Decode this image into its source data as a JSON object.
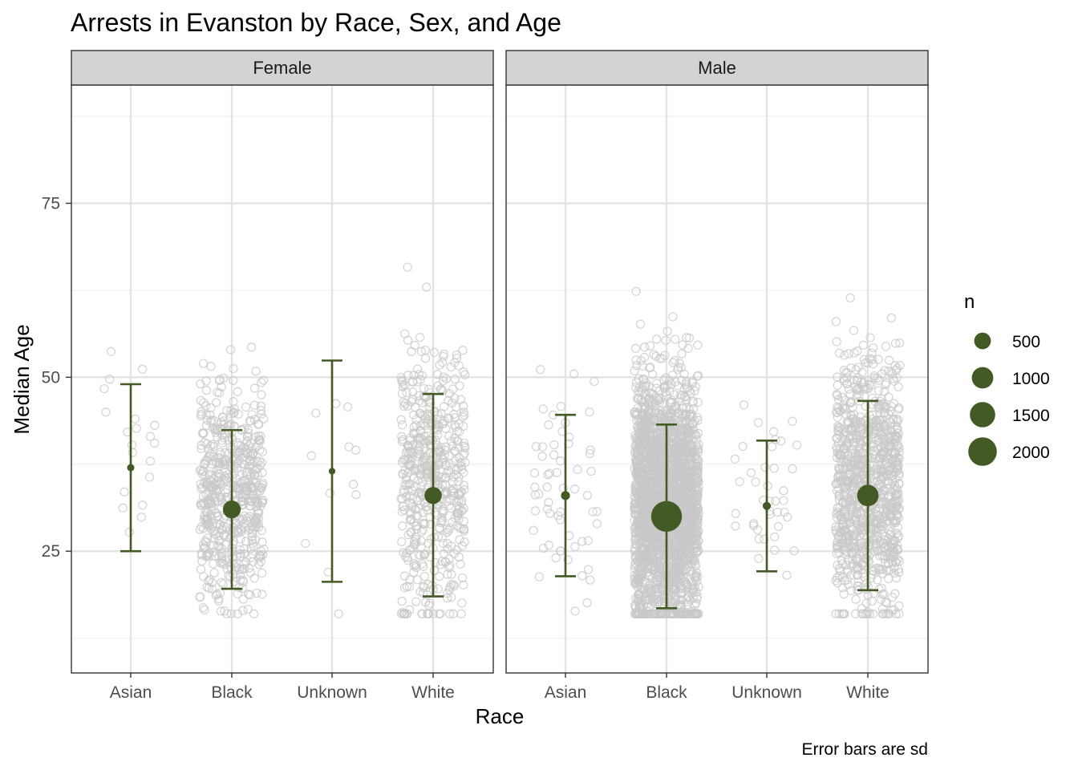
{
  "chart_data": {
    "type": "scatter",
    "title": "Arrests in Evanston by Race, Sex, and Age",
    "xlabel": "Race",
    "ylabel": "Median Age",
    "caption": "Error bars are sd",
    "categories": [
      "Asian",
      "Black",
      "Unknown",
      "White"
    ],
    "ylim": [
      7.5,
      92
    ],
    "yticks": [
      25,
      50,
      75
    ],
    "grid": true,
    "legend": {
      "title": "n",
      "position": "right",
      "entries": [
        {
          "label": "500",
          "value": 500
        },
        {
          "label": "1000",
          "value": 1000
        },
        {
          "label": "1500",
          "value": 1500
        },
        {
          "label": "2000",
          "value": 2000
        }
      ]
    },
    "colors": {
      "summary": "#435a25",
      "points": "#c8c8c8",
      "strip": "#d3d3d3"
    },
    "panels": [
      {
        "facet": "Female",
        "summary": [
          {
            "race": "Asian",
            "median": 37,
            "lower": 25,
            "upper": 49,
            "n": 20
          },
          {
            "race": "Black",
            "median": 31,
            "lower": 19.6,
            "upper": 42.4,
            "n": 600
          },
          {
            "race": "Unknown",
            "median": 36.5,
            "lower": 20.6,
            "upper": 52.4,
            "n": 12
          },
          {
            "race": "White",
            "median": 33,
            "lower": 18.5,
            "upper": 47.6,
            "n": 550
          }
        ],
        "raw_counts": [
          20,
          600,
          12,
          550
        ]
      },
      {
        "facet": "Male",
        "summary": [
          {
            "race": "Asian",
            "median": 33,
            "lower": 21.4,
            "upper": 44.6,
            "n": 60
          },
          {
            "race": "Black",
            "median": 30,
            "lower": 16.8,
            "upper": 43.2,
            "n": 2400
          },
          {
            "race": "Unknown",
            "median": 31.5,
            "lower": 22.1,
            "upper": 40.9,
            "n": 40
          },
          {
            "race": "White",
            "median": 33,
            "lower": 19.4,
            "upper": 46.6,
            "n": 1000
          }
        ],
        "raw_counts": [
          60,
          2400,
          40,
          1000
        ]
      }
    ]
  }
}
